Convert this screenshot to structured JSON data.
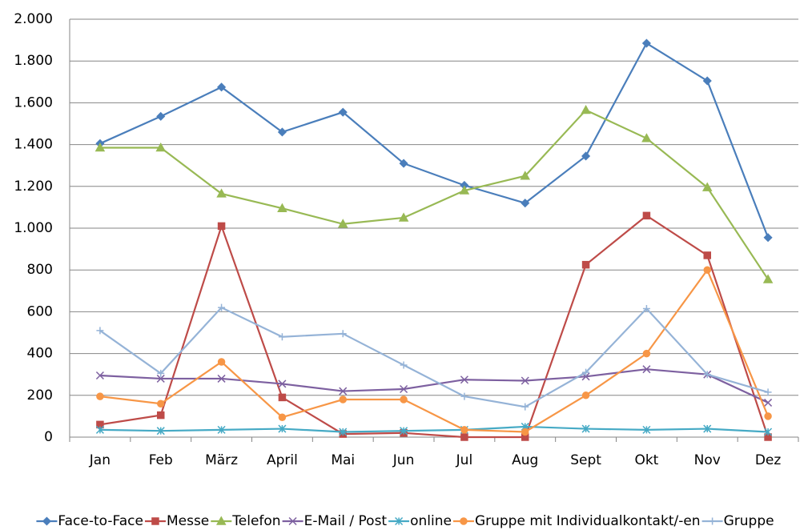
{
  "chart_data": {
    "type": "line",
    "categories": [
      "Jan",
      "Feb",
      "März",
      "April",
      "Mai",
      "Jun",
      "Jul",
      "Aug",
      "Sept",
      "Okt",
      "Nov",
      "Dez"
    ],
    "ylim": [
      0,
      2000
    ],
    "yticks": [
      {
        "value": 0,
        "label": "0"
      },
      {
        "value": 200,
        "label": "200"
      },
      {
        "value": 400,
        "label": "400"
      },
      {
        "value": 600,
        "label": "600"
      },
      {
        "value": 800,
        "label": "800"
      },
      {
        "value": 1000,
        "label": "1.000"
      },
      {
        "value": 1200,
        "label": "1.200"
      },
      {
        "value": 1400,
        "label": "1.400"
      },
      {
        "value": 1600,
        "label": "1.600"
      },
      {
        "value": 1800,
        "label": "1.800"
      },
      {
        "value": 2000,
        "label": "2.000"
      }
    ],
    "grid": true,
    "legend": "bottom",
    "series": [
      {
        "name": "Face-to-Face",
        "color": "#4a7ebb",
        "marker": "diamond",
        "values": [
          1405,
          1535,
          1675,
          1460,
          1555,
          1310,
          1205,
          1120,
          1345,
          1885,
          1705,
          955
        ]
      },
      {
        "name": "Messe",
        "color": "#be4b48",
        "marker": "square",
        "values": [
          60,
          105,
          1010,
          190,
          15,
          20,
          0,
          0,
          825,
          1060,
          870,
          0
        ]
      },
      {
        "name": "Telefon",
        "color": "#98b954",
        "marker": "triangle",
        "values": [
          1385,
          1385,
          1165,
          1095,
          1020,
          1050,
          1180,
          1250,
          1565,
          1430,
          1195,
          755
        ]
      },
      {
        "name": "E-Mail / Post",
        "color": "#7d60a0",
        "marker": "x",
        "values": [
          295,
          280,
          280,
          255,
          220,
          230,
          275,
          270,
          290,
          325,
          300,
          165
        ]
      },
      {
        "name": "online",
        "color": "#46aac5",
        "marker": "star",
        "values": [
          35,
          30,
          35,
          40,
          25,
          30,
          35,
          50,
          40,
          35,
          40,
          25
        ]
      },
      {
        "name": "Gruppe mit Individualkontakt/-en",
        "color": "#f79646",
        "marker": "circle",
        "values": [
          195,
          160,
          360,
          95,
          180,
          180,
          35,
          25,
          200,
          400,
          800,
          100
        ]
      },
      {
        "name": "Gruppe",
        "color": "#95b3d7",
        "marker": "plus",
        "values": [
          510,
          305,
          620,
          480,
          495,
          345,
          195,
          145,
          310,
          615,
          300,
          215
        ]
      }
    ]
  }
}
